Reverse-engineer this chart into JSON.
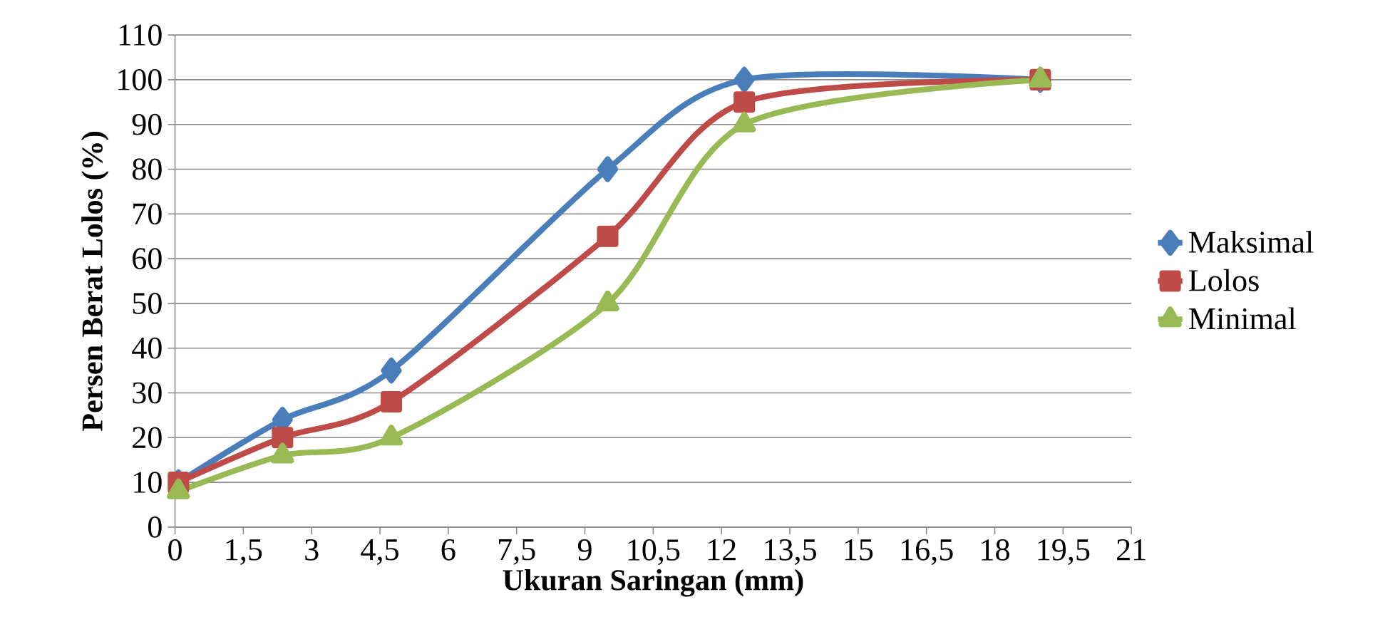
{
  "chart_data": {
    "type": "line",
    "xlabel": "Ukuran Saringan (mm)",
    "ylabel": "Persen Berat Lolos (%)",
    "x": [
      0.075,
      2.36,
      4.75,
      9.5,
      12.5,
      19
    ],
    "series": [
      {
        "name": "Maksimal",
        "color": "#4a7ebb",
        "marker": "diamond",
        "values": [
          10,
          24,
          35,
          80,
          100,
          100
        ]
      },
      {
        "name": "Lolos",
        "color": "#be4b48",
        "marker": "square",
        "values": [
          10,
          20,
          28,
          65,
          95,
          100
        ]
      },
      {
        "name": "Minimal",
        "color": "#98b954",
        "marker": "triangle",
        "values": [
          8,
          16,
          20,
          50,
          90,
          100
        ]
      }
    ],
    "xlim": [
      0,
      21
    ],
    "xticks": [
      0,
      {
        "value": 1.5,
        "label": "1,5"
      },
      3,
      {
        "value": 4.5,
        "label": "4,5"
      },
      6,
      {
        "value": 7.5,
        "label": "7,5"
      },
      9,
      {
        "value": 10.5,
        "label": "10,5"
      },
      12,
      {
        "value": 13.5,
        "label": "13,5"
      },
      15,
      {
        "value": 16.5,
        "label": "16,5"
      },
      18,
      {
        "value": 19.5,
        "label": "19,5"
      },
      21
    ],
    "ylim": [
      0,
      110
    ],
    "yticks": [
      0,
      10,
      20,
      30,
      40,
      50,
      60,
      70,
      80,
      90,
      100,
      110
    ],
    "grid": "y",
    "legend": "right",
    "line_style": "solid"
  }
}
